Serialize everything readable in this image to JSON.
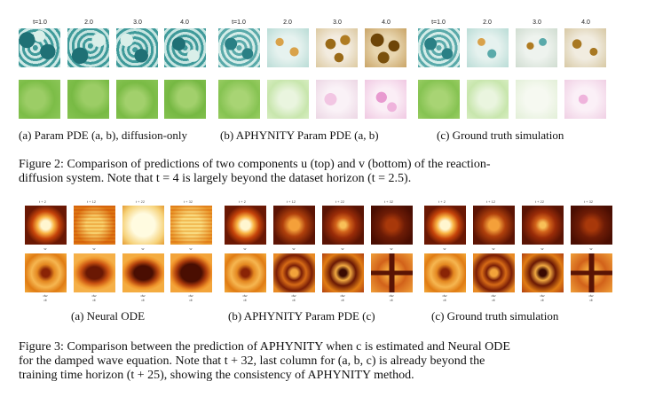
{
  "figure2": {
    "time_labels": [
      "t=1.0",
      "2.0",
      "3.0",
      "4.0"
    ],
    "subcaptions": [
      "(a) Param PDE (a, b), diffusion-only",
      "(b) APHYNITY Param PDE (a, b)",
      "(c) Ground truth simulation"
    ],
    "caption_lines": [
      "Figure 2: Comparison of predictions of two components u (top) and v (bottom) of the reaction-",
      "diffusion system. Note that t = 4 is largely beyond the dataset horizon (t = 2.5)."
    ]
  },
  "figure3": {
    "time_labels": [
      "t + 2",
      "t + 12",
      "t + 22",
      "t + 32"
    ],
    "row_label_top": "w",
    "row_label_bottom_num": "dw",
    "row_label_bottom_den": "dt",
    "subcaptions": [
      "(a) Neural ODE",
      "(b) APHYNITY Param PDE (c)",
      "(c) Ground truth simulation"
    ],
    "caption_lines": [
      "Figure 3: Comparison between the prediction of APHYNITY when c is estimated and Neural ODE",
      "for the damped wave equation. Note that t + 32, last column for (a, b, c) is already beyond the",
      "training time horizon (t + 25), showing the consistency of APHYNITY method."
    ]
  },
  "colors": {
    "teal_dark": "#2a7f86",
    "teal_light": "#cfe9e6",
    "green": "#7fbf4a",
    "pink": "#e89ad0",
    "brown": "#8a5a10",
    "orange": "#e07a10",
    "dark_red": "#7a1a06",
    "yellow": "#fff1a0"
  }
}
